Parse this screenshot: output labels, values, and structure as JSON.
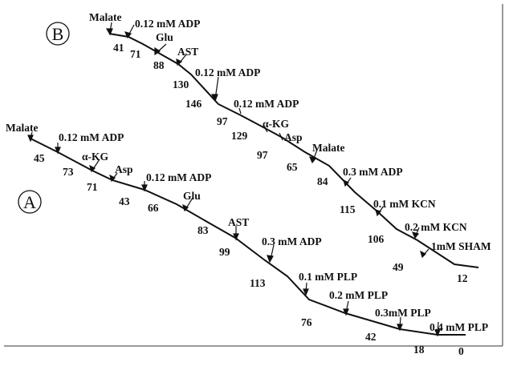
{
  "panels": {
    "b": {
      "letter": "B",
      "additions": [
        "Malate",
        "0.12 mM ADP",
        "Glu",
        "AST",
        "0.12 mM ADP",
        "0.12 mM ADP",
        "α-KG",
        "Asp",
        "Malate",
        "0.3 mM ADP",
        "0.1 mM KCN",
        "0.2 mM KCN",
        "1mM SHAM"
      ],
      "rates": [
        "41",
        "71",
        "88",
        "130",
        "146",
        "97",
        "129",
        "97",
        "65",
        "84",
        "115",
        "106",
        "49",
        "12"
      ]
    },
    "a": {
      "letter": "A",
      "additions": [
        "Malate",
        "0.12 mM ADP",
        "α-KG",
        "Asp",
        "0.12 mM ADP",
        "Glu",
        "AST",
        "0.3 mM ADP",
        "0.1 mM PLP",
        "0.2 mM PLP",
        "0.3mM PLP",
        "0.4 mM PLP"
      ],
      "rates": [
        "45",
        "73",
        "71",
        "43",
        "66",
        "83",
        "99",
        "113",
        "76",
        "42",
        "18",
        "0"
      ]
    }
  }
}
